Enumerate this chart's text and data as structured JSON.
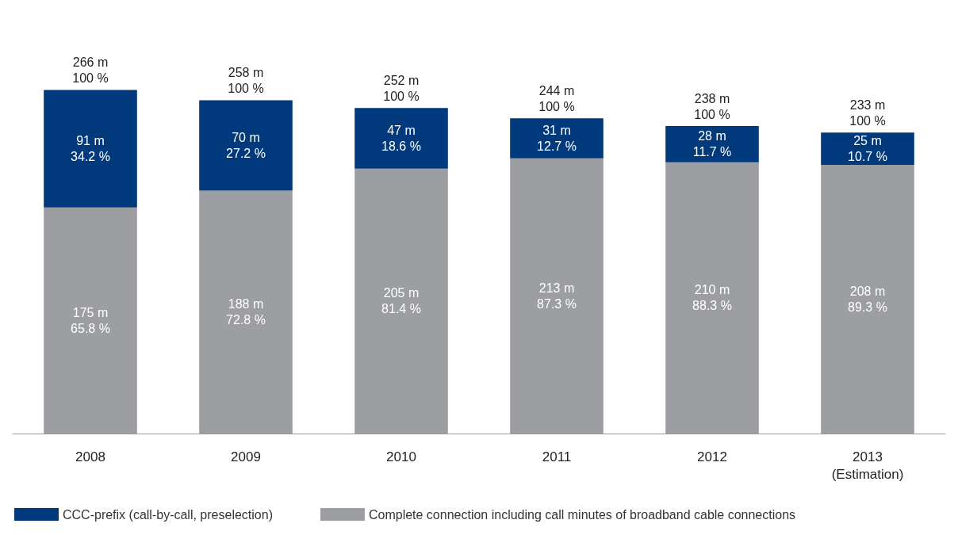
{
  "chart_data": {
    "type": "bar",
    "stacked": true,
    "categories": [
      "2008",
      "2009",
      "2010",
      "2011",
      "2012",
      "2013\n(Estimation)"
    ],
    "series": [
      {
        "name": "Complete connection including call minutes of broadband cable connections",
        "color": "#9d9ea1",
        "values": [
          175,
          188,
          205,
          213,
          210,
          208
        ],
        "value_labels": [
          "175 m\n65.8 %",
          "188 m\n72.8 %",
          "205 m\n81.4 %",
          "213 m\n87.3 %",
          "210 m\n88.3 %",
          "208 m\n89.3 %"
        ]
      },
      {
        "name": "CCC-prefix (call-by-call, preselection)",
        "color": "#003a7d",
        "values": [
          91,
          70,
          47,
          31,
          28,
          25
        ],
        "value_labels": [
          "91 m\n34.2 %",
          "70 m\n27.2 %",
          "47 m\n18.6 %",
          "31 m\n12.7 %",
          "28 m\n11.7 %",
          "25 m\n10.7 %"
        ]
      }
    ],
    "totals": [
      "266 m\n100 %",
      "258 m\n100 %",
      "252 m\n100 %",
      "244 m\n100 %",
      "238 m\n100 %",
      "233 m\n100 %"
    ],
    "legend": "bottom left",
    "grid": false
  }
}
